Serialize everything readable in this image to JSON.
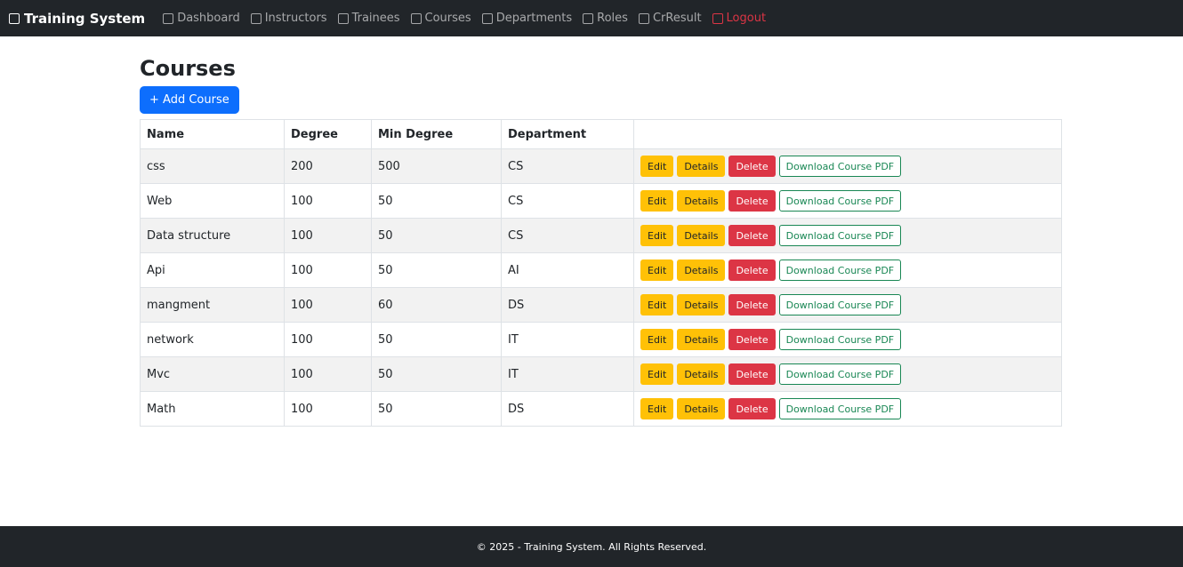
{
  "navbar": {
    "brand": "Training System",
    "items": [
      "Dashboard",
      "Instructors",
      "Trainees",
      "Courses",
      "Departments",
      "Roles",
      "CrResult",
      "Logout"
    ]
  },
  "page": {
    "title": "Courses",
    "add_button": "+ Add Course"
  },
  "table": {
    "headers": [
      "Name",
      "Degree",
      "Min Degree",
      "Department"
    ],
    "rows": [
      [
        "css",
        200,
        500,
        "CS"
      ],
      [
        "Web",
        100,
        50,
        "CS"
      ],
      [
        "Data structure",
        100,
        50,
        "CS"
      ],
      [
        "Api",
        100,
        50,
        "AI"
      ],
      [
        "mangment",
        100,
        60,
        "DS"
      ],
      [
        "network",
        100,
        50,
        "IT"
      ],
      [
        "Mvc",
        100,
        50,
        "IT"
      ],
      [
        "Math",
        100,
        50,
        "DS"
      ]
    ],
    "actions": [
      "Edit",
      "Details",
      "Delete",
      "Download Course PDF"
    ]
  },
  "footer": {
    "text": "© 2025 - Training System. All Rights Reserved."
  }
}
